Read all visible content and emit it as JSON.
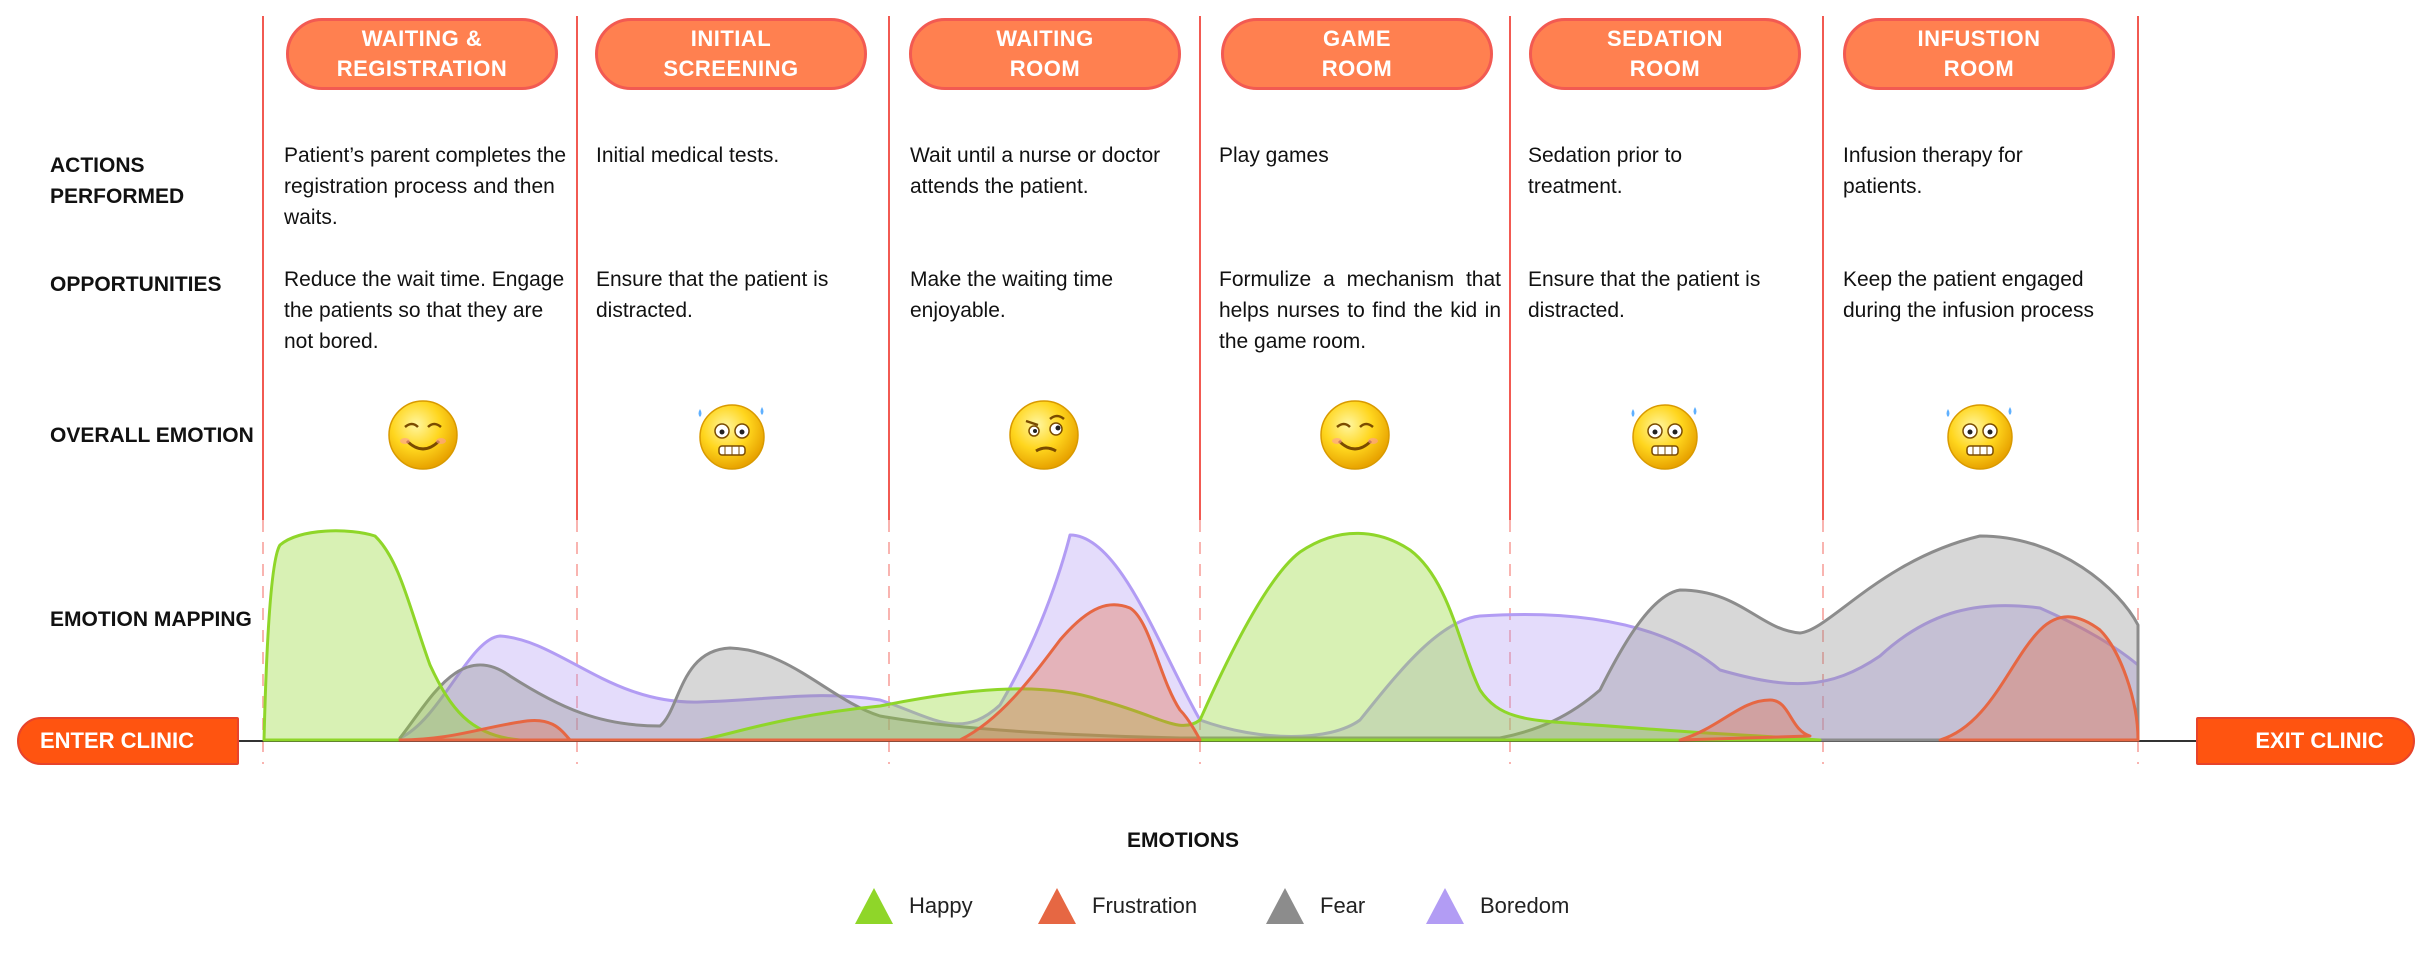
{
  "stages": [
    {
      "line1": "WAITING &",
      "line2": "REGISTRATION",
      "actions": "Patient’s parent completes the registration process and then waits.",
      "opportunities": "Reduce the wait time. Engage the patients so that they are not bored.",
      "emotion_icon": "smiling-emoji-icon"
    },
    {
      "line1": "INITIAL",
      "line2": "SCREENING",
      "actions": "Initial medical tests.",
      "opportunities": "Ensure that the patient is distracted.",
      "emotion_icon": "scared-emoji-icon"
    },
    {
      "line1": "WAITING",
      "line2": "ROOM",
      "actions": "Wait until a nurse or doctor attends the patient.",
      "opportunities": "Make the waiting time enjoyable.",
      "emotion_icon": "doubtful-emoji-icon"
    },
    {
      "line1": "GAME",
      "line2": "ROOM",
      "actions": "Play games",
      "opportunities": "Formulize a mechanism that helps nurses to find the kid in the game room.",
      "emotion_icon": "smiling-emoji-icon"
    },
    {
      "line1": "SEDATION",
      "line2": "ROOM",
      "actions": "Sedation prior to treatment.",
      "opportunities": "Ensure that the patient is distracted.",
      "emotion_icon": "scared-emoji-icon"
    },
    {
      "line1": "INFUSTION",
      "line2": "ROOM",
      "actions": "Infusion therapy for patients.",
      "opportunities": "Keep the patient engaged during the infusion process",
      "emotion_icon": "scared-emoji-icon"
    }
  ],
  "row_labels": {
    "actions_line1": "ACTIONS",
    "actions_line2": "PERFORMED",
    "opportunities": "OPPORTUNITIES",
    "overall_emotion": "OVERALL EMOTION",
    "emotion_mapping": "EMOTION MAPPING"
  },
  "journey": {
    "enter": "ENTER CLINIC",
    "exit": "EXIT CLINIC"
  },
  "legend": {
    "title": "EMOTIONS",
    "items": [
      {
        "label": "Happy",
        "color": "#8fd629"
      },
      {
        "label": "Frustration",
        "color": "#e66743"
      },
      {
        "label": "Fear",
        "color": "#8c8c8c"
      },
      {
        "label": "Boredom",
        "color": "#b29cf4"
      }
    ]
  },
  "colors": {
    "stage_fill": "#ff8050",
    "stage_border": "#f25a52",
    "divider": "#f25a52",
    "pill": "#ff5410"
  }
}
